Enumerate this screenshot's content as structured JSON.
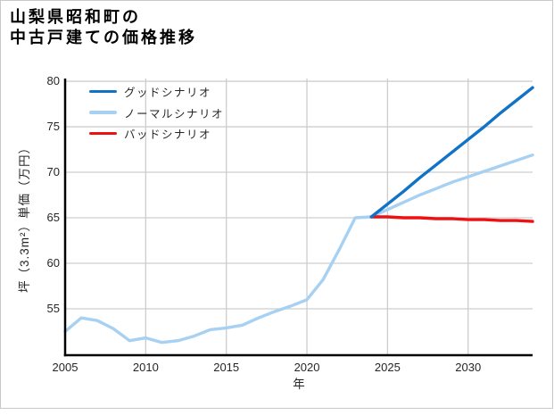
{
  "chart_data": {
    "type": "line",
    "title": "山梨県昭和町の\n中古戸建ての価格推移",
    "xlabel": "年",
    "ylabel": "坪（3.3m²）単価（万円）",
    "xlim": [
      2005,
      2034
    ],
    "ylim": [
      49.9,
      80.3
    ],
    "xticks": [
      2005,
      2010,
      2015,
      2020,
      2025,
      2030
    ],
    "yticks": [
      55,
      60,
      65,
      70,
      75,
      80
    ],
    "grid": true,
    "legend_position": "upper-left",
    "series": [
      {
        "key": "good",
        "name": "グッドシナリオ",
        "color": "#1173c5",
        "x": [
          2024,
          2025,
          2026,
          2027,
          2028,
          2029,
          2030,
          2031,
          2032,
          2033,
          2034
        ],
        "values": [
          65.1,
          66.5,
          67.9,
          69.4,
          70.8,
          72.2,
          73.6,
          75.0,
          76.5,
          77.9,
          79.3
        ]
      },
      {
        "key": "normal",
        "name": "ノーマルシナリオ",
        "color": "#a6d1f3",
        "x": [
          2005,
          2006,
          2007,
          2008,
          2009,
          2010,
          2011,
          2012,
          2013,
          2014,
          2015,
          2016,
          2017,
          2018,
          2019,
          2020,
          2021,
          2022,
          2023,
          2024,
          2025,
          2026,
          2027,
          2028,
          2029,
          2030,
          2031,
          2032,
          2033,
          2034
        ],
        "values": [
          52.5,
          54.0,
          53.7,
          52.8,
          51.5,
          51.8,
          51.3,
          51.5,
          52.0,
          52.7,
          52.9,
          53.2,
          54.0,
          54.7,
          55.3,
          56.0,
          58.2,
          61.5,
          65.0,
          65.1,
          65.9,
          66.7,
          67.5,
          68.2,
          68.9,
          69.5,
          70.1,
          70.7,
          71.3,
          71.9
        ]
      },
      {
        "key": "bad",
        "name": "バッドシナリオ",
        "color": "#ee1111",
        "x": [
          2024,
          2025,
          2026,
          2027,
          2028,
          2029,
          2030,
          2031,
          2032,
          2033,
          2034
        ],
        "values": [
          65.1,
          65.1,
          65.0,
          65.0,
          64.9,
          64.9,
          64.8,
          64.8,
          64.7,
          64.7,
          64.6
        ]
      }
    ],
    "style": {
      "grid_color": "#cdcdcd",
      "spine_color": "#000000",
      "text_color": "#262626",
      "frame_color": "#c9c9c9",
      "line_width": 3.4
    }
  }
}
